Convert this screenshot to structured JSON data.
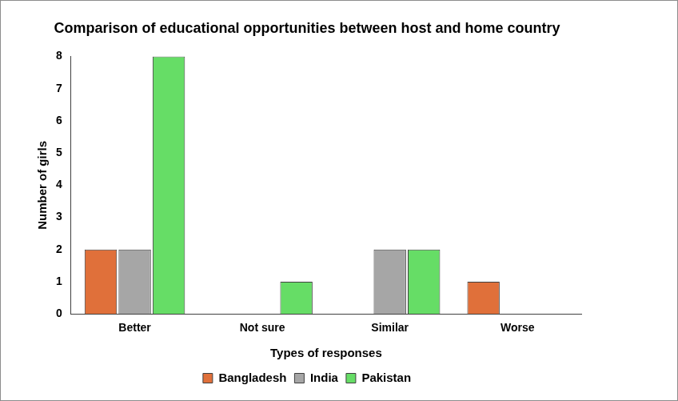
{
  "chart_data": {
    "type": "bar",
    "title": "Comparison of educational opportunities between host and home country",
    "x_label": "Types of responses",
    "y_label": "Number of girls",
    "categories": [
      "Better",
      "Not sure",
      "Similar",
      "Worse"
    ],
    "series": [
      {
        "name": "Bangladesh",
        "color": "#e0703a",
        "values": [
          2,
          0,
          0,
          1
        ]
      },
      {
        "name": "India",
        "color": "#a6a6a6",
        "values": [
          2,
          0,
          2,
          0
        ]
      },
      {
        "name": "Pakistan",
        "color": "#66dd66",
        "values": [
          8,
          1,
          2,
          0
        ]
      }
    ],
    "ylim": [
      0,
      8
    ],
    "yticks": [
      0,
      1,
      2,
      3,
      4,
      5,
      6,
      7,
      8
    ],
    "grid": false,
    "legend": "bottom"
  }
}
